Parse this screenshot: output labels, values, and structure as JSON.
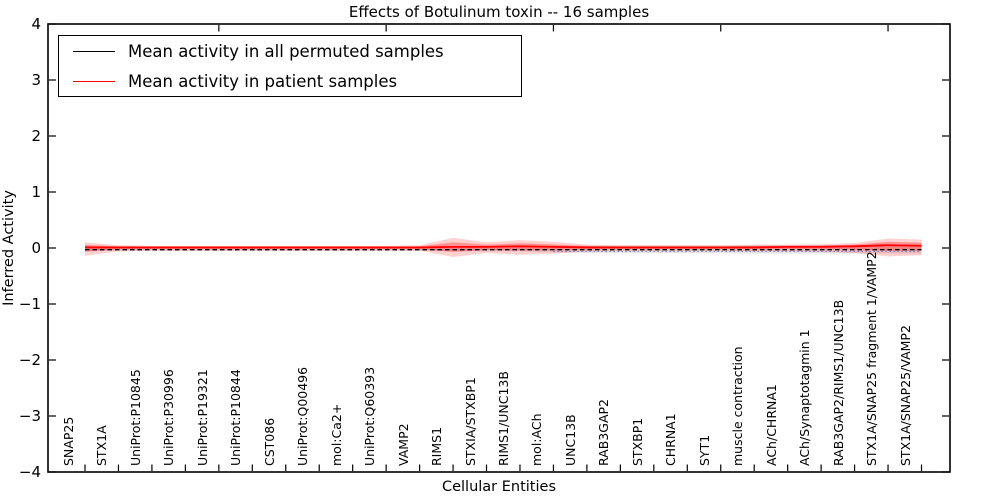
{
  "title": "Effects of Botulinum toxin -- 16 samples",
  "legend": {
    "items": [
      {
        "label": "Mean activity in all permuted samples",
        "color": "#000000"
      },
      {
        "label": "Mean activity in patient samples",
        "color": "#ff0000"
      }
    ]
  },
  "chart_data": {
    "type": "line",
    "title": "Effects of Botulinum toxin -- 16 samples",
    "xlabel": "Cellular Entities",
    "ylabel": "Inferred Activity",
    "ylim": [
      -4,
      4
    ],
    "ytick_values": [
      -4,
      -3,
      -2,
      -1,
      0,
      1,
      2,
      3,
      4
    ],
    "ytick_labels": [
      "−4",
      "−3",
      "−2",
      "−1",
      "0",
      "1",
      "2",
      "3",
      "4"
    ],
    "top_xtick_indices": [
      4,
      9,
      14,
      19,
      24
    ],
    "grid": false,
    "legend_position": "upper left",
    "categories": [
      "SNAP25",
      "STX1A",
      "UniProt:P10845",
      "UniProt:P30996",
      "UniProt:P19321",
      "UniProt:P10844",
      "CST086",
      "UniProt:Q00496",
      "mol:Ca2+",
      "UniProt:Q60393",
      "VAMP2",
      "RIMS1",
      "STXIA/STXBP1",
      "RIMS1/UNC13B",
      "mol:ACh",
      "UNC13B",
      "RAB3GAP2",
      "STXBP1",
      "CHRNA1",
      "SYT1",
      "muscle contraction",
      "ACh/CHRNA1",
      "ACh/Synaptotagmin 1",
      "RAB3GAP2/RIMS1/UNC13B",
      "STX1A/SNAP25 fragment 1/VAMP2",
      "STX1A/SNAP25/VAMP2"
    ],
    "series": [
      {
        "name": "Mean activity in all permuted samples",
        "color": "#000000",
        "style": "dashed",
        "values": [
          -0.03,
          -0.03,
          -0.03,
          -0.03,
          -0.03,
          -0.03,
          -0.03,
          -0.03,
          -0.03,
          -0.03,
          -0.03,
          -0.03,
          -0.03,
          -0.03,
          -0.03,
          -0.03,
          -0.03,
          -0.03,
          -0.03,
          -0.03,
          -0.03,
          -0.03,
          -0.03,
          -0.03,
          -0.03,
          -0.03
        ]
      },
      {
        "name": "Mean activity in patient samples",
        "color": "#ff0000",
        "style": "solid",
        "values": [
          0.01,
          0.01,
          0.01,
          0.01,
          0.01,
          0.01,
          0.01,
          0.01,
          0.01,
          0.01,
          0.01,
          0.02,
          0.02,
          0.03,
          0.02,
          0.01,
          0.01,
          0.01,
          0.01,
          0.01,
          0.01,
          0.02,
          0.02,
          0.03,
          0.05,
          0.04
        ]
      }
    ],
    "bands": [
      {
        "name": "permuted-samples-spread",
        "color": "rgba(0,0,0,0.10)",
        "upper": [
          0.02,
          0.01,
          0.01,
          0.01,
          0.01,
          0.01,
          0.01,
          0.01,
          0.01,
          0.01,
          0.01,
          0.02,
          0.02,
          0.02,
          0.03,
          0.04,
          0.04,
          0.04,
          0.04,
          0.04,
          0.05,
          0.05,
          0.05,
          0.05,
          0.06,
          0.06
        ],
        "lower": [
          -0.06,
          -0.05,
          -0.05,
          -0.05,
          -0.05,
          -0.05,
          -0.05,
          -0.05,
          -0.05,
          -0.05,
          -0.05,
          -0.06,
          -0.06,
          -0.06,
          -0.08,
          -0.09,
          -0.09,
          -0.09,
          -0.09,
          -0.09,
          -0.1,
          -0.1,
          -0.1,
          -0.1,
          -0.1,
          -0.1
        ]
      },
      {
        "name": "patient-samples-spread",
        "color": "rgba(255,0,0,0.18)",
        "upper": [
          0.1,
          0.05,
          0.04,
          0.04,
          0.04,
          0.04,
          0.04,
          0.04,
          0.04,
          0.04,
          0.05,
          0.18,
          0.1,
          0.14,
          0.11,
          0.06,
          0.05,
          0.05,
          0.05,
          0.05,
          0.06,
          0.06,
          0.07,
          0.09,
          0.17,
          0.15
        ],
        "lower": [
          -0.14,
          -0.06,
          -0.05,
          -0.05,
          -0.05,
          -0.05,
          -0.05,
          -0.05,
          -0.05,
          -0.05,
          -0.05,
          -0.16,
          -0.09,
          -0.12,
          -0.1,
          -0.06,
          -0.05,
          -0.05,
          -0.05,
          -0.05,
          -0.06,
          -0.06,
          -0.07,
          -0.09,
          -0.15,
          -0.13
        ]
      }
    ],
    "reference_line": {
      "name": "baseline-dotted",
      "color": "#5555cc",
      "style": "dotted",
      "value": -0.06,
      "start_index": 14,
      "end_index": 25
    }
  }
}
